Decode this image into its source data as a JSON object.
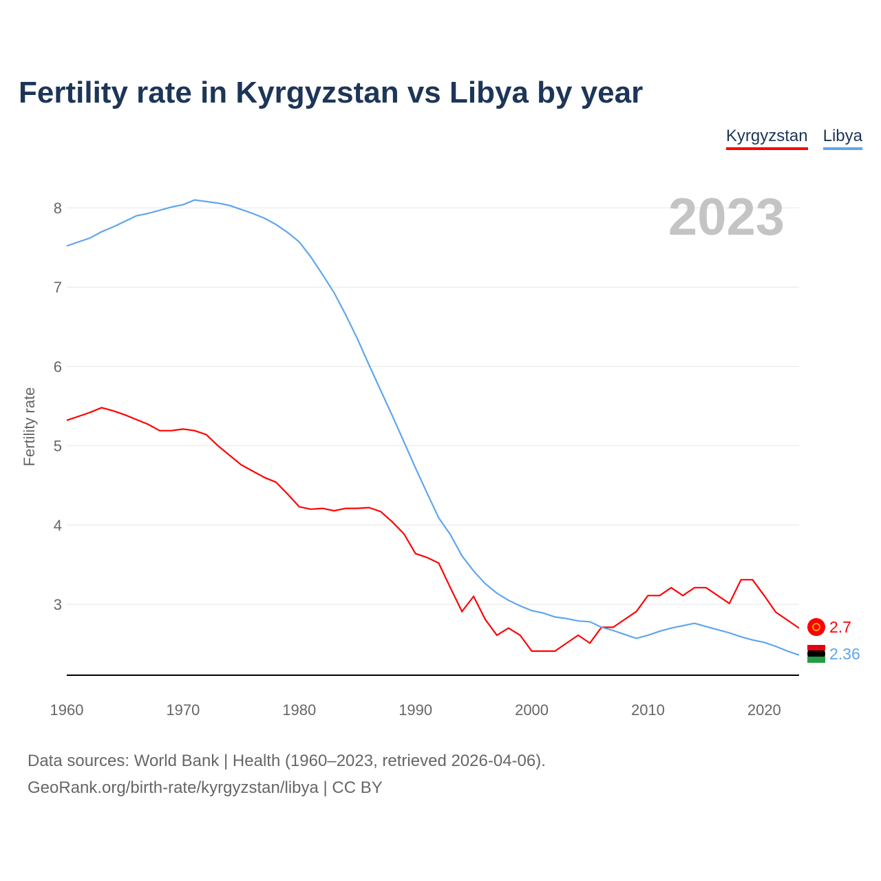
{
  "title": "Fertility rate in Kyrgyzstan vs Libya by year",
  "footer": {
    "line1": "Data sources: World Bank | Health (1960–2023, retrieved 2026-04-06).",
    "line2": "GeoRank.org/birth-rate/kyrgyzstan/libya | CC BY"
  },
  "chart_data": {
    "type": "line",
    "title": "Fertility rate in Kyrgyzstan vs Libya by year",
    "xlabel": "",
    "ylabel": "Fertility rate",
    "year_label": "2023",
    "xlim": [
      1960,
      2023
    ],
    "ylim": [
      2.12,
      8.2
    ],
    "xticks": [
      "1960",
      "1970",
      "1980",
      "1990",
      "2000",
      "2010",
      "2020"
    ],
    "yticks": [
      "3",
      "4",
      "5",
      "6",
      "7",
      "8"
    ],
    "legend_position": "top-right",
    "x": [
      1960,
      1961,
      1962,
      1963,
      1964,
      1965,
      1966,
      1967,
      1968,
      1969,
      1970,
      1971,
      1972,
      1973,
      1974,
      1975,
      1976,
      1977,
      1978,
      1979,
      1980,
      1981,
      1982,
      1983,
      1984,
      1985,
      1986,
      1987,
      1988,
      1989,
      1990,
      1991,
      1992,
      1993,
      1994,
      1995,
      1996,
      1997,
      1998,
      1999,
      2000,
      2001,
      2002,
      2003,
      2004,
      2005,
      2006,
      2007,
      2008,
      2009,
      2010,
      2011,
      2012,
      2013,
      2014,
      2015,
      2016,
      2017,
      2018,
      2019,
      2020,
      2021,
      2022,
      2023
    ],
    "series": [
      {
        "name": "Kyrgyzstan",
        "color": "#ff0000",
        "end_label": "2.7",
        "values": [
          5.32,
          5.37,
          5.42,
          5.48,
          5.44,
          5.39,
          5.33,
          5.27,
          5.19,
          5.19,
          5.21,
          5.19,
          5.14,
          5.0,
          4.88,
          4.76,
          4.68,
          4.6,
          4.54,
          4.39,
          4.23,
          4.2,
          4.21,
          4.18,
          4.21,
          4.21,
          4.22,
          4.17,
          4.04,
          3.89,
          3.64,
          3.59,
          3.52,
          3.21,
          2.91,
          3.1,
          2.81,
          2.61,
          2.7,
          2.61,
          2.41,
          2.41,
          2.41,
          2.51,
          2.61,
          2.51,
          2.71,
          2.71,
          2.81,
          2.91,
          3.11,
          3.11,
          3.21,
          3.11,
          3.21,
          3.21,
          3.11,
          3.01,
          3.31,
          3.31,
          3.11,
          2.9,
          2.8,
          2.7
        ]
      },
      {
        "name": "Libya",
        "color": "#5ea5ee",
        "end_label": "2.36",
        "values": [
          7.52,
          7.57,
          7.62,
          7.7,
          7.76,
          7.83,
          7.9,
          7.93,
          7.97,
          8.01,
          8.04,
          8.1,
          8.08,
          8.06,
          8.03,
          7.98,
          7.93,
          7.87,
          7.79,
          7.69,
          7.57,
          7.38,
          7.16,
          6.93,
          6.65,
          6.35,
          6.02,
          5.7,
          5.38,
          5.05,
          4.72,
          4.4,
          4.09,
          3.88,
          3.61,
          3.42,
          3.26,
          3.14,
          3.05,
          2.98,
          2.92,
          2.89,
          2.84,
          2.82,
          2.79,
          2.78,
          2.71,
          2.67,
          2.62,
          2.57,
          2.61,
          2.66,
          2.7,
          2.73,
          2.76,
          2.72,
          2.68,
          2.64,
          2.59,
          2.55,
          2.52,
          2.47,
          2.41,
          2.36
        ]
      }
    ]
  }
}
